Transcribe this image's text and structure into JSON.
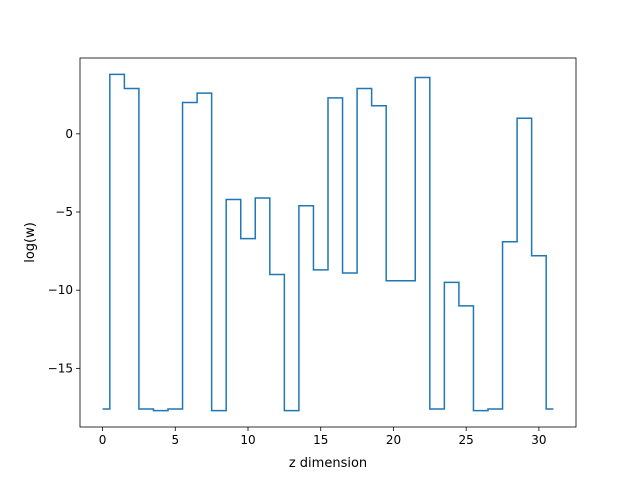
{
  "chart_data": {
    "type": "line",
    "drawstyle": "steps-mid",
    "title": "",
    "xlabel": "z dimension",
    "ylabel": "log(w)",
    "xlim": [
      -1.55,
      32.55
    ],
    "ylim": [
      -18.75,
      4.85
    ],
    "xticks": [
      0,
      5,
      10,
      15,
      20,
      25,
      30
    ],
    "yticks": [
      -15,
      -10,
      -5,
      0
    ],
    "ytick_labels": [
      "−15",
      "−10",
      "−5",
      "0"
    ],
    "grid": false,
    "legend": "none",
    "series": [
      {
        "color": "#1f77b4",
        "x": [
          0,
          1,
          2,
          3,
          4,
          5,
          6,
          7,
          8,
          9,
          10,
          11,
          12,
          13,
          14,
          15,
          16,
          17,
          18,
          19,
          20,
          21,
          22,
          23,
          24,
          25,
          26,
          27,
          28,
          29,
          30,
          31
        ],
        "values": [
          -17.6,
          3.8,
          2.9,
          -17.6,
          -17.7,
          -17.6,
          2.0,
          2.6,
          -17.7,
          -4.2,
          -6.7,
          -4.1,
          -9.0,
          -17.7,
          -4.6,
          -8.7,
          2.3,
          -8.9,
          2.9,
          1.8,
          -9.4,
          -9.4,
          3.6,
          -17.6,
          -9.5,
          -11.0,
          -17.7,
          -17.6,
          -6.9,
          1.0,
          -7.8,
          -17.6
        ]
      }
    ]
  }
}
